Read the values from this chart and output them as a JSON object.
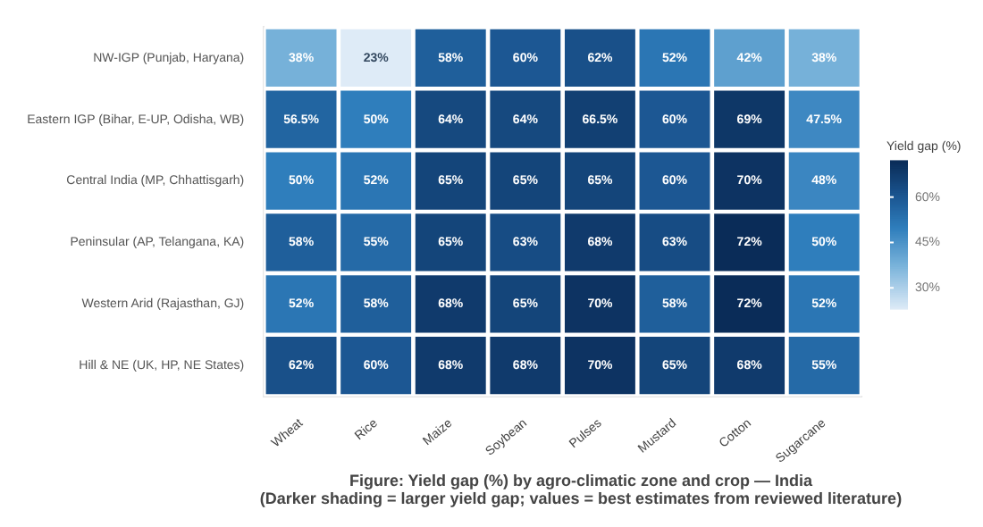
{
  "chart_data": {
    "type": "heatmap",
    "title": "Figure: Yield gap (%) by agro-climatic zone and crop — India",
    "subtitle": "(Darker shading = larger yield gap; values = best estimates from reviewed literature)",
    "clabel": "Yield gap (%)",
    "categories": [
      "Wheat",
      "Rice",
      "Maize",
      "Soybean",
      "Pulses",
      "Mustard",
      "Cotton",
      "Sugarcane"
    ],
    "y_categories": [
      "NW-IGP (Punjab, Haryana)",
      "Eastern IGP (Bihar, E-UP, Odisha, WB)",
      "Central India (MP, Chhattisgarh)",
      "Peninsular (AP, Telangana, KA)",
      "Western Arid (Rajasthan, GJ)",
      "Hill & NE (UK, HP, NE States)"
    ],
    "cells": [
      [
        38,
        23,
        58,
        60,
        62,
        52,
        42,
        38
      ],
      [
        56.5,
        50,
        64,
        64,
        66.5,
        60,
        69,
        47.5
      ],
      [
        50,
        52,
        65,
        65,
        65,
        60,
        70,
        48
      ],
      [
        58,
        55,
        65,
        63,
        68,
        63,
        72,
        50
      ],
      [
        52,
        58,
        68,
        65,
        70,
        58,
        72,
        52
      ],
      [
        62,
        60,
        68,
        68,
        70,
        65,
        68,
        55
      ]
    ],
    "cell_labels": [
      [
        "38%",
        "23%",
        "58%",
        "60%",
        "62%",
        "52%",
        "42%",
        "38%"
      ],
      [
        "56.5%",
        "50%",
        "64%",
        "64%",
        "66.5%",
        "60%",
        "69%",
        "47.5%"
      ],
      [
        "50%",
        "52%",
        "65%",
        "65%",
        "65%",
        "60%",
        "70%",
        "48%"
      ],
      [
        "58%",
        "55%",
        "65%",
        "63%",
        "68%",
        "63%",
        "72%",
        "50%"
      ],
      [
        "52%",
        "58%",
        "68%",
        "65%",
        "70%",
        "58%",
        "72%",
        "52%"
      ],
      [
        "62%",
        "60%",
        "68%",
        "68%",
        "70%",
        "65%",
        "68%",
        "55%"
      ]
    ],
    "clim": [
      23,
      72
    ],
    "cticks": [
      {
        "value": 30,
        "label": "30%"
      },
      {
        "value": 45,
        "label": "45%"
      },
      {
        "value": 60,
        "label": "60%"
      }
    ]
  }
}
